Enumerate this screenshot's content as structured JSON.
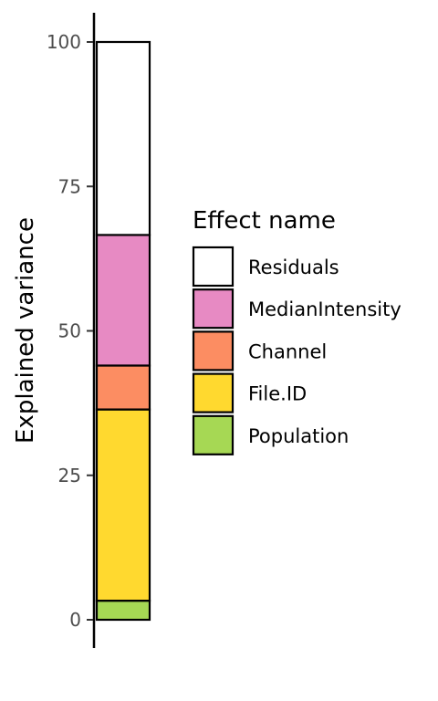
{
  "chart_data": {
    "type": "bar",
    "stacked": true,
    "categories": [
      ""
    ],
    "ylabel": "Explained variance",
    "ylim": [
      0,
      100
    ],
    "yticks": [
      0,
      25,
      50,
      75,
      100
    ],
    "grid": false,
    "legend": {
      "title": "Effect name",
      "placement": "right"
    },
    "series": [
      {
        "name": "Population",
        "values": [
          3.3
        ],
        "color": "#a6d854"
      },
      {
        "name": "File.ID",
        "values": [
          33.1
        ],
        "color": "#ffd92f"
      },
      {
        "name": "Channel",
        "values": [
          7.6
        ],
        "color": "#fc8d62"
      },
      {
        "name": "MedianIntensity",
        "values": [
          22.6
        ],
        "color": "#e78ac3"
      },
      {
        "name": "Residuals",
        "values": [
          33.4
        ],
        "color": "#ffffff"
      }
    ],
    "legend_order": [
      "Residuals",
      "MedianIntensity",
      "Channel",
      "File.ID",
      "Population"
    ]
  }
}
